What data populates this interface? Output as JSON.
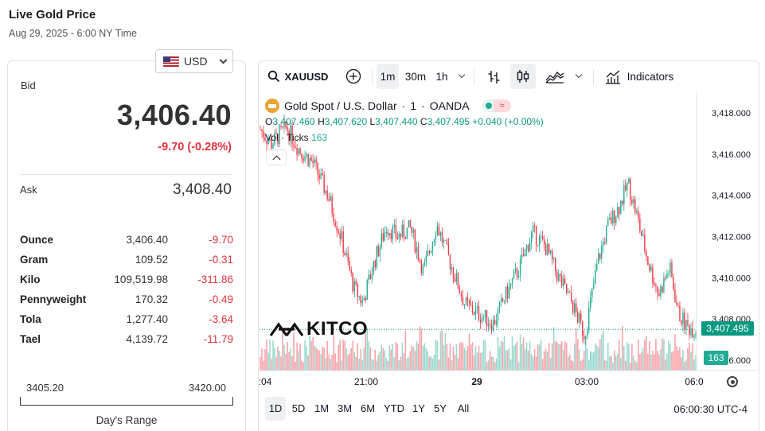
{
  "page": {
    "title": "Live Gold Price",
    "date": "Aug 29, 2025 - 6:00 NY Time"
  },
  "currency": {
    "selected": "USD",
    "flag_icon": "us-flag-icon"
  },
  "quote": {
    "bid_label": "Bid",
    "bid": "3,406.40",
    "change": "-9.70 (-0.28%)",
    "ask_label": "Ask",
    "ask": "3,408.40",
    "down_color": "#e0333c"
  },
  "units": [
    {
      "name": "Ounce",
      "price": "3,406.40",
      "change": "-9.70"
    },
    {
      "name": "Gram",
      "price": "109.52",
      "change": "-0.31"
    },
    {
      "name": "Kilo",
      "price": "109,519.98",
      "change": "-311.86"
    },
    {
      "name": "Pennyweight",
      "price": "170.32",
      "change": "-0.49"
    },
    {
      "name": "Tola",
      "price": "1,277.40",
      "change": "-3.64"
    },
    {
      "name": "Tael",
      "price": "4,139.72",
      "change": "-11.79"
    }
  ],
  "day_range": {
    "low": "3405.20",
    "high": "3420.00",
    "label": "Day's Range"
  },
  "toolbar": {
    "symbol": "XAUUSD",
    "intervals": [
      "1m",
      "30m",
      "1h"
    ],
    "active_interval": "1m",
    "indicators_label": "Indicators"
  },
  "legend": {
    "instrument": "Gold Spot / U.S. Dollar",
    "interval": "1",
    "source": "OANDA",
    "o_label": "O",
    "o": "3,407.460",
    "h_label": "H",
    "h": "3,407.620",
    "l_label": "L",
    "l": "3,407.440",
    "c_label": "C",
    "c": "3,407.495",
    "change": "+0.040 (+0.00%)",
    "vol_label": "Vol · Ticks",
    "vol_value": "163"
  },
  "brand": {
    "logo_text": "KITCO"
  },
  "chart_data": {
    "type": "candlestick",
    "symbol": "XAUUSD",
    "y_ticks": [
      "3,418.000",
      "3,416.000",
      "3,414.000",
      "3,412.000",
      "3,410.000",
      "3,408.000",
      "3,406.000"
    ],
    "y_tick_values": [
      3418,
      3416,
      3414,
      3412,
      3410,
      3408,
      3406
    ],
    "ylim": [
      3405.5,
      3419.0
    ],
    "x_ticks": [
      ":04",
      "21:00",
      "29",
      "03:00",
      "06:0"
    ],
    "last_price": "3,407.495",
    "last_price_value": 3407.495,
    "last_volume": "163",
    "path_anchors": [
      [
        0,
        3417.2
      ],
      [
        0.025,
        3416.5
      ],
      [
        0.06,
        3417.3
      ],
      [
        0.09,
        3416.2
      ],
      [
        0.12,
        3415.6
      ],
      [
        0.155,
        3414.0
      ],
      [
        0.185,
        3412.0
      ],
      [
        0.215,
        3409.5
      ],
      [
        0.235,
        3408.8
      ],
      [
        0.265,
        3411.0
      ],
      [
        0.29,
        3412.5
      ],
      [
        0.315,
        3412.0
      ],
      [
        0.345,
        3412.4
      ],
      [
        0.375,
        3410.3
      ],
      [
        0.405,
        3412.6
      ],
      [
        0.435,
        3410.8
      ],
      [
        0.47,
        3408.7
      ],
      [
        0.505,
        3408.2
      ],
      [
        0.535,
        3407.8
      ],
      [
        0.565,
        3409.2
      ],
      [
        0.595,
        3410.5
      ],
      [
        0.625,
        3412.2
      ],
      [
        0.655,
        3411.5
      ],
      [
        0.685,
        3410.0
      ],
      [
        0.715,
        3408.8
      ],
      [
        0.745,
        3407.2
      ],
      [
        0.775,
        3410.8
      ],
      [
        0.8,
        3412.6
      ],
      [
        0.825,
        3413.5
      ],
      [
        0.845,
        3414.6
      ],
      [
        0.865,
        3413.0
      ],
      [
        0.89,
        3410.8
      ],
      [
        0.915,
        3409.2
      ],
      [
        0.94,
        3410.5
      ],
      [
        0.96,
        3408.3
      ],
      [
        0.98,
        3407.6
      ],
      [
        1.0,
        3407.5
      ]
    ],
    "up_color": "#22ab94",
    "down_color": "#f23645",
    "grid": false
  },
  "range_buttons": [
    "1D",
    "5D",
    "1M",
    "3M",
    "6M",
    "YTD",
    "1Y",
    "5Y",
    "All"
  ],
  "active_range": "1D",
  "timezone": "06:00:30 UTC-4"
}
